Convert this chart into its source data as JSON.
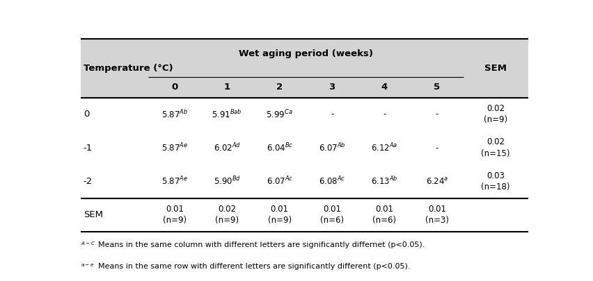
{
  "title": "Wet aging period (weeks)",
  "col_header_label": "Temperature (°C)",
  "col_headers": [
    "0",
    "1",
    "2",
    "3",
    "4",
    "5"
  ],
  "row_headers": [
    "0",
    "-1",
    "-2",
    "SEM"
  ],
  "header_bg": "#d4d4d4",
  "cell_bg": "#ffffff",
  "font_size": 8.5,
  "header_font_size": 9.5,
  "footnote_font_size": 8.0,
  "cell_contents": [
    [
      [
        "5.87",
        "Ab"
      ],
      [
        "5.91",
        "Bab"
      ],
      [
        "5.99",
        "Ca"
      ],
      [
        "-",
        ""
      ],
      [
        "-",
        ""
      ],
      [
        "-",
        ""
      ],
      [
        "0.02",
        "",
        "(n=9)"
      ]
    ],
    [
      [
        "5.87",
        "Ae"
      ],
      [
        "6.02",
        "Ad"
      ],
      [
        "6.04",
        "Bc"
      ],
      [
        "6.07",
        "Ab"
      ],
      [
        "6.12",
        "Aa"
      ],
      [
        "-",
        ""
      ],
      [
        "0.02",
        "",
        "(n=15)"
      ]
    ],
    [
      [
        "5.87",
        "Ae"
      ],
      [
        "5.90",
        "Bd"
      ],
      [
        "6.07",
        "Ac"
      ],
      [
        "6.08",
        "Ac"
      ],
      [
        "6.13",
        "Ab"
      ],
      [
        "6.24",
        "a"
      ],
      [
        "0.03",
        "",
        "(n=18)"
      ]
    ],
    [
      [
        "0.01",
        "",
        "(n=9)"
      ],
      [
        "0.02",
        "",
        "(n=9)"
      ],
      [
        "0.01",
        "",
        "(n=9)"
      ],
      [
        "0.01",
        "",
        "(n=6)"
      ],
      [
        "0.01",
        "",
        "(n=6)"
      ],
      [
        "0.01",
        "",
        "(n=3)"
      ],
      [
        "",
        ""
      ]
    ]
  ]
}
